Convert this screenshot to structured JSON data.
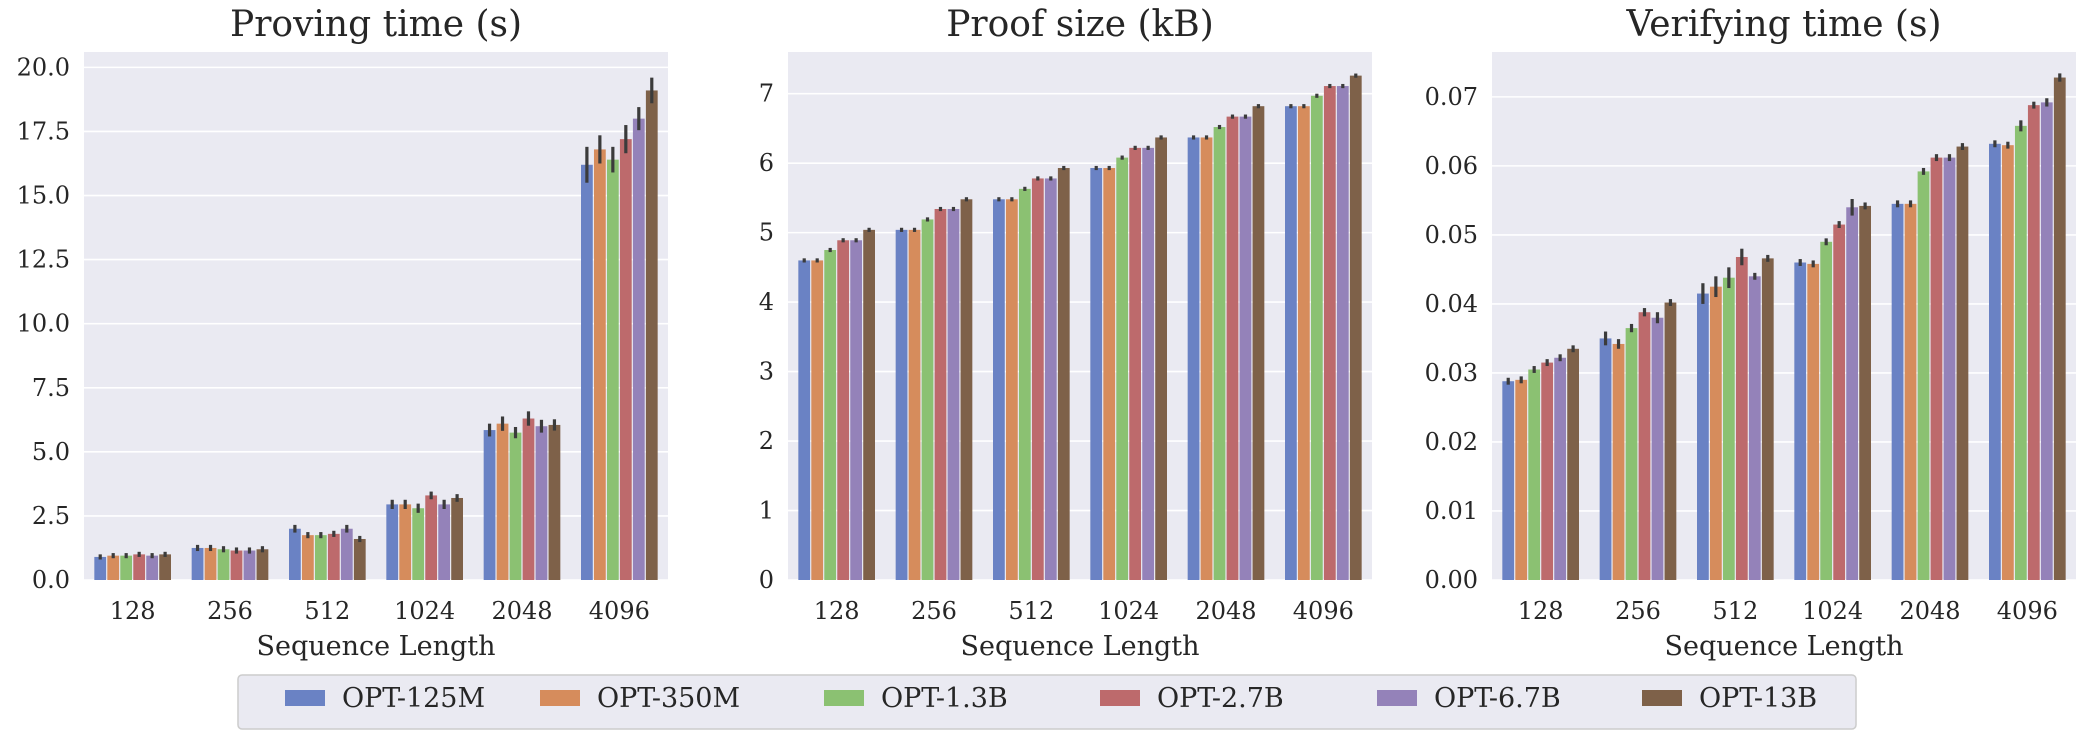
{
  "legend": {
    "entries": [
      "OPT-125M",
      "OPT-350M",
      "OPT-1.3B",
      "OPT-2.7B",
      "OPT-6.7B",
      "OPT-13B"
    ],
    "colors": [
      "#6a82c4",
      "#d68c5c",
      "#8bc172",
      "#bd6a6c",
      "#9482b9",
      "#7e6149"
    ]
  },
  "style": {
    "panel_bg": "#eaeaf2",
    "grid": "#ffffff",
    "errorbar": "#3b3b3b"
  },
  "chart_data": [
    {
      "type": "bar",
      "title": "Proving time (s)",
      "xlabel": "Sequence Length",
      "ylabel": "",
      "ylim": [
        0,
        20.6
      ],
      "yticks": [
        0,
        2.5,
        5,
        7.5,
        10,
        12.5,
        15,
        17.5,
        20
      ],
      "ytick_labels": [
        "0.0",
        "2.5",
        "5.0",
        "7.5",
        "10.0",
        "12.5",
        "15.0",
        "17.5",
        "20.0"
      ],
      "categories": [
        "128",
        "256",
        "512",
        "1024",
        "2048",
        "4096"
      ],
      "series": [
        {
          "name": "OPT-125M",
          "values": [
            0.9,
            1.25,
            2.0,
            2.95,
            5.85,
            16.2
          ],
          "errors": [
            0.1,
            0.12,
            0.15,
            0.18,
            0.25,
            0.7
          ]
        },
        {
          "name": "OPT-350M",
          "values": [
            0.95,
            1.25,
            1.75,
            2.95,
            6.1,
            16.8
          ],
          "errors": [
            0.1,
            0.12,
            0.12,
            0.18,
            0.28,
            0.55
          ]
        },
        {
          "name": "OPT-1.3B",
          "values": [
            0.95,
            1.2,
            1.75,
            2.8,
            5.75,
            16.4
          ],
          "errors": [
            0.1,
            0.12,
            0.12,
            0.18,
            0.22,
            0.5
          ]
        },
        {
          "name": "OPT-2.7B",
          "values": [
            1.0,
            1.15,
            1.8,
            3.3,
            6.3,
            17.2
          ],
          "errors": [
            0.1,
            0.12,
            0.12,
            0.15,
            0.28,
            0.55
          ]
        },
        {
          "name": "OPT-6.7B",
          "values": [
            0.95,
            1.15,
            2.0,
            2.95,
            6.0,
            18.0
          ],
          "errors": [
            0.1,
            0.12,
            0.15,
            0.18,
            0.25,
            0.45
          ]
        },
        {
          "name": "OPT-13B",
          "values": [
            1.0,
            1.2,
            1.6,
            3.2,
            6.05,
            19.1
          ],
          "errors": [
            0.1,
            0.12,
            0.12,
            0.15,
            0.22,
            0.5
          ]
        }
      ]
    },
    {
      "type": "bar",
      "title": "Proof size (kB)",
      "xlabel": "Sequence Length",
      "ylabel": "",
      "ylim": [
        0,
        7.6
      ],
      "yticks": [
        0,
        1,
        2,
        3,
        4,
        5,
        6,
        7
      ],
      "ytick_labels": [
        "0",
        "1",
        "2",
        "3",
        "4",
        "5",
        "6",
        "7"
      ],
      "categories": [
        "128",
        "256",
        "512",
        "1024",
        "2048",
        "4096"
      ],
      "series": [
        {
          "name": "OPT-125M",
          "values": [
            4.6,
            5.04,
            5.48,
            5.93,
            6.37,
            6.82
          ],
          "errors": [
            0.03,
            0.03,
            0.03,
            0.03,
            0.03,
            0.03
          ]
        },
        {
          "name": "OPT-350M",
          "values": [
            4.6,
            5.04,
            5.48,
            5.93,
            6.37,
            6.82
          ],
          "errors": [
            0.03,
            0.03,
            0.03,
            0.03,
            0.03,
            0.03
          ]
        },
        {
          "name": "OPT-1.3B",
          "values": [
            4.75,
            5.19,
            5.63,
            6.08,
            6.52,
            6.97
          ],
          "errors": [
            0.03,
            0.03,
            0.03,
            0.03,
            0.03,
            0.03
          ]
        },
        {
          "name": "OPT-2.7B",
          "values": [
            4.89,
            5.34,
            5.78,
            6.22,
            6.67,
            7.11
          ],
          "errors": [
            0.03,
            0.03,
            0.03,
            0.03,
            0.03,
            0.03
          ]
        },
        {
          "name": "OPT-6.7B",
          "values": [
            4.89,
            5.34,
            5.78,
            6.22,
            6.67,
            7.11
          ],
          "errors": [
            0.03,
            0.03,
            0.03,
            0.03,
            0.03,
            0.03
          ]
        },
        {
          "name": "OPT-13B",
          "values": [
            5.04,
            5.48,
            5.93,
            6.37,
            6.82,
            7.26
          ],
          "errors": [
            0.03,
            0.03,
            0.03,
            0.03,
            0.03,
            0.03
          ]
        }
      ]
    },
    {
      "type": "bar",
      "title": "Verifying time (s)",
      "xlabel": "Sequence Length",
      "ylabel": "",
      "ylim": [
        0,
        0.0765
      ],
      "yticks": [
        0,
        0.01,
        0.02,
        0.03,
        0.04,
        0.05,
        0.06,
        0.07
      ],
      "ytick_labels": [
        "0.00",
        "0.01",
        "0.02",
        "0.03",
        "0.04",
        "0.05",
        "0.06",
        "0.07"
      ],
      "categories": [
        "128",
        "256",
        "512",
        "1024",
        "2048",
        "4096"
      ],
      "series": [
        {
          "name": "OPT-125M",
          "values": [
            0.0288,
            0.035,
            0.0415,
            0.046,
            0.0545,
            0.0632
          ],
          "errors": [
            0.0005,
            0.001,
            0.0015,
            0.0005,
            0.0005,
            0.0005
          ]
        },
        {
          "name": "OPT-350M",
          "values": [
            0.029,
            0.0342,
            0.0425,
            0.0458,
            0.0545,
            0.063
          ],
          "errors": [
            0.0005,
            0.0007,
            0.0015,
            0.0005,
            0.0005,
            0.0005
          ]
        },
        {
          "name": "OPT-1.3B",
          "values": [
            0.0305,
            0.0365,
            0.0438,
            0.049,
            0.0592,
            0.0658
          ],
          "errors": [
            0.0005,
            0.0006,
            0.0015,
            0.0005,
            0.0005,
            0.0008
          ]
        },
        {
          "name": "OPT-2.7B",
          "values": [
            0.0315,
            0.0388,
            0.0468,
            0.0515,
            0.0612,
            0.0688
          ],
          "errors": [
            0.0005,
            0.0006,
            0.0012,
            0.0005,
            0.0005,
            0.0005
          ]
        },
        {
          "name": "OPT-6.7B",
          "values": [
            0.0322,
            0.038,
            0.044,
            0.054,
            0.0612,
            0.0692
          ],
          "errors": [
            0.0005,
            0.0008,
            0.0005,
            0.0012,
            0.0005,
            0.0006
          ]
        },
        {
          "name": "OPT-13B",
          "values": [
            0.0335,
            0.0402,
            0.0466,
            0.0542,
            0.0628,
            0.0728
          ],
          "errors": [
            0.0005,
            0.0005,
            0.0005,
            0.0005,
            0.0005,
            0.0006
          ]
        }
      ]
    }
  ]
}
